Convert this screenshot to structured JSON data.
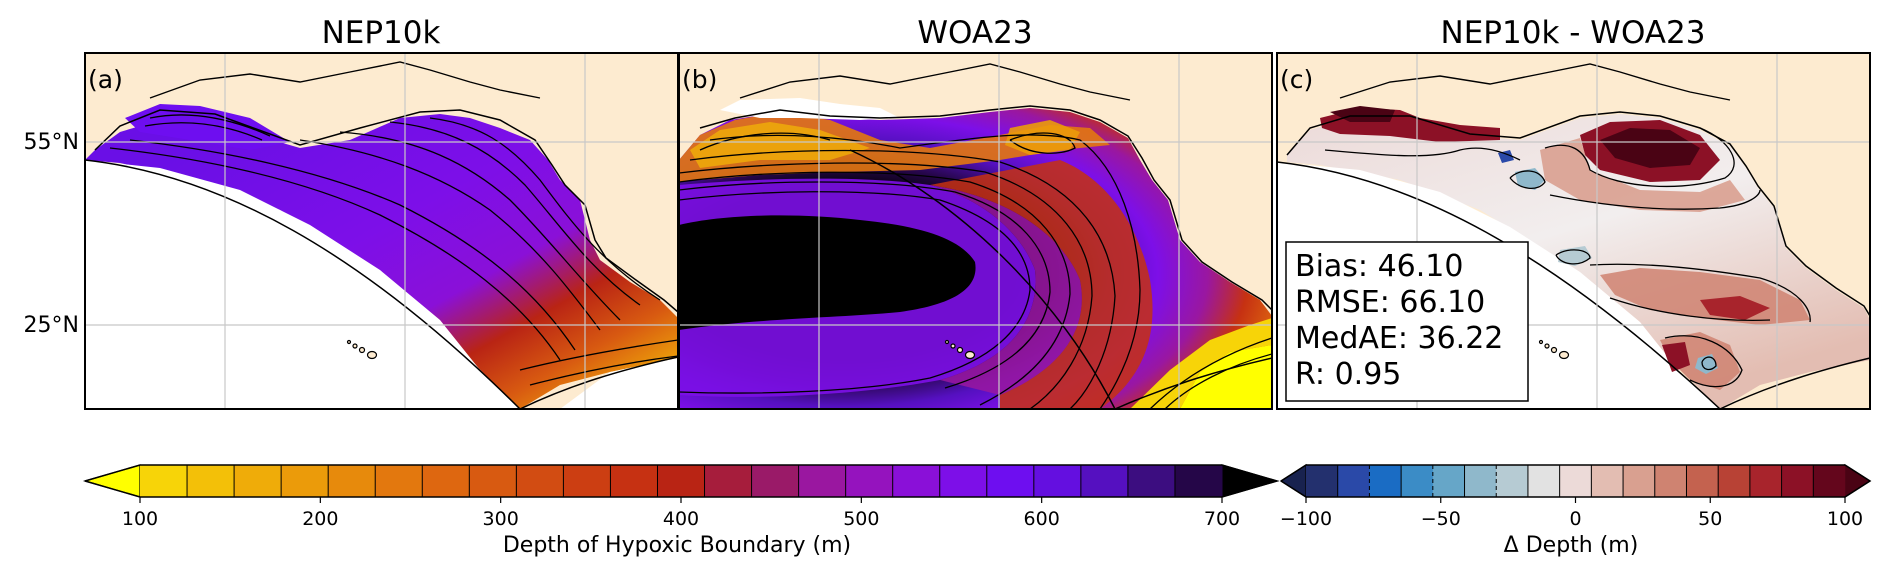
{
  "panels": [
    {
      "title": "NEP10k",
      "label": "(a)"
    },
    {
      "title": "WOA23",
      "label": "(b)"
    },
    {
      "title": "NEP10k - WOA23",
      "label": "(c)"
    }
  ],
  "lat_labels": [
    "55°N",
    "25°N"
  ],
  "stats": {
    "bias": "Bias: 46.10",
    "rmse": "RMSE: 66.10",
    "medae": "MedAE: 36.22",
    "r": "R: 0.95"
  },
  "depth_colorbar": {
    "label": "Depth of Hypoxic Boundary (m)",
    "ticks": [
      "100",
      "200",
      "300",
      "400",
      "500",
      "600",
      "700"
    ],
    "colors": [
      "#f7d408",
      "#f3c008",
      "#efac09",
      "#eb9b0a",
      "#e78a0c",
      "#e3780e",
      "#de6710",
      "#d85a11",
      "#d24c12",
      "#cc3e12",
      "#c63112",
      "#b92414",
      "#a61d3c",
      "#9a1a68",
      "#9a17a0",
      "#9513be",
      "#8a10d8",
      "#7d0fe8",
      "#6e0ef0",
      "#640fe0",
      "#5510c0",
      "#3c0d80",
      "#250648"
    ],
    "extend_min_color": "#ffff00",
    "extend_max_color": "#000000"
  },
  "delta_colorbar": {
    "label": "Δ Depth (m)",
    "ticks": [
      "−100",
      "−50",
      "0",
      "50",
      "100"
    ],
    "colors": [
      "#23306e",
      "#2a49a8",
      "#1a6cc4",
      "#3b8cc6",
      "#66a6c8",
      "#8fb8cb",
      "#b6cbd3",
      "#e2e2e2",
      "#ecdad8",
      "#e3bdb2",
      "#d9a090",
      "#cf8371",
      "#c4624f",
      "#b84235",
      "#a8242c",
      "#8c1126",
      "#64061c"
    ],
    "extend_min_color": "#18224f",
    "extend_max_color": "#4a0314"
  },
  "colors": {
    "land": "#fdebd0",
    "no_data": "#ffffff",
    "grid": "#c8c8c8",
    "contour": "#000000"
  }
}
